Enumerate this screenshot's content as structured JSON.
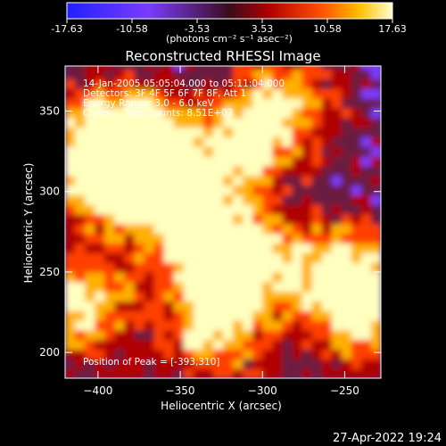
{
  "colorbar": {
    "ticks": [
      "-17.63",
      "-10.58",
      "-3.53",
      "3.53",
      "10.58",
      "17.63"
    ],
    "unit_label": "(photons cm⁻² s⁻¹ asec⁻²)"
  },
  "title": "Reconstructed RHESSI Image",
  "annotations": {
    "time": "14-Jan-2005 05:05:04.000 to 05:11:04.000",
    "detectors": "Detectors: 3F 4F 5F 6F 7F 8F, Att 1",
    "energy": "Energy Range: 3.0 - 6.0 keV",
    "clean": "Clean     Total counts: 8.51E+03",
    "peak": "Position of Peak = [-393,310]"
  },
  "footer": {
    "date": "27-Apr-2022 19:24"
  },
  "chart_data": {
    "type": "heatmap",
    "title": "Reconstructed RHESSI Image",
    "xlabel": "Heliocentric X (arcsec)",
    "ylabel": "Heliocentric Y (arcsec)",
    "xlim": [
      -420,
      -228
    ],
    "ylim": [
      184,
      378
    ],
    "x_ticks": [
      -400,
      -350,
      -300,
      -250
    ],
    "y_ticks": [
      200,
      250,
      300,
      350
    ],
    "color_range": [
      -17.63,
      17.63
    ],
    "colormap": [
      "#2b2bff",
      "#7a3cff",
      "#6a1a40",
      "#b00000",
      "#ff4000",
      "#ffb000",
      "#ffffc0"
    ],
    "peak_position": [
      -393,
      310
    ],
    "hotspots": [
      {
        "x": -393,
        "y": 310,
        "value": 17.6
      },
      {
        "x": -370,
        "y": 330,
        "value": 14
      },
      {
        "x": -355,
        "y": 300,
        "value": 13
      },
      {
        "x": -335,
        "y": 268,
        "value": 15
      },
      {
        "x": -330,
        "y": 215,
        "value": 14
      },
      {
        "x": -310,
        "y": 330,
        "value": 12
      },
      {
        "x": -300,
        "y": 255,
        "value": 11
      },
      {
        "x": -248,
        "y": 250,
        "value": 13
      },
      {
        "x": -240,
        "y": 225,
        "value": 12
      },
      {
        "x": -410,
        "y": 230,
        "value": 14
      },
      {
        "x": -398,
        "y": 340,
        "value": 10
      },
      {
        "x": -285,
        "y": 355,
        "value": 9
      }
    ]
  }
}
